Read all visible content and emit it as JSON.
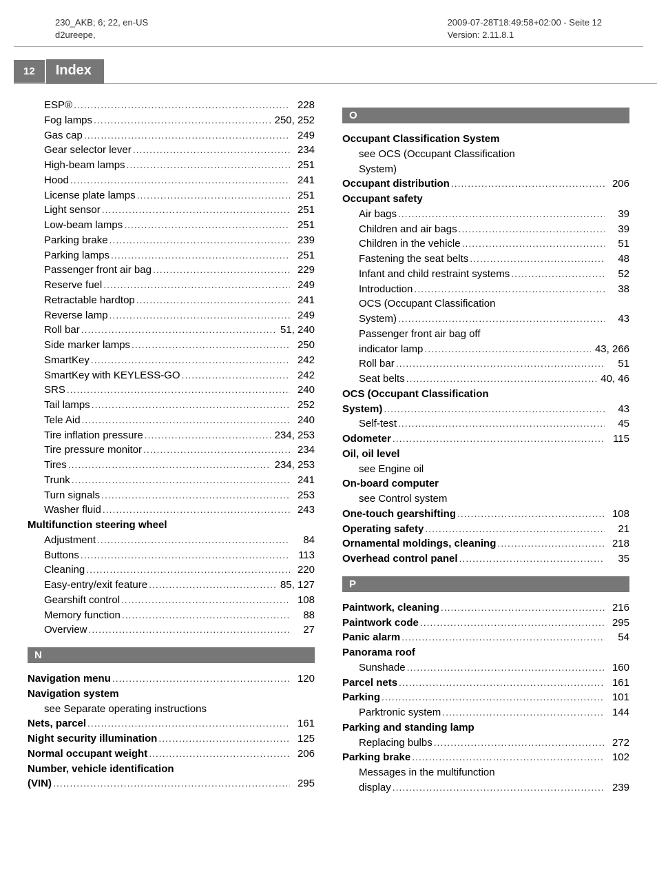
{
  "header": {
    "left_line1": "230_AKB; 6; 22, en-US",
    "left_line2": "d2ureepe,",
    "right_line1": "2009-07-28T18:49:58+02:00 - Seite 12",
    "right_line2": "Version: 2.11.8.1"
  },
  "pagebar": {
    "num": "12",
    "title": "Index"
  },
  "colors": {
    "bar": "#777777",
    "text": "#000000"
  },
  "left_col": [
    {
      "label": "ESP®",
      "page": "228",
      "indent": true
    },
    {
      "label": "Fog lamps",
      "page": "250, 252",
      "indent": true
    },
    {
      "label": "Gas cap",
      "page": "249",
      "indent": true
    },
    {
      "label": "Gear selector lever",
      "page": "234",
      "indent": true
    },
    {
      "label": "High-beam lamps",
      "page": "251",
      "indent": true
    },
    {
      "label": "Hood",
      "page": "241",
      "indent": true
    },
    {
      "label": "License plate lamps",
      "page": "251",
      "indent": true
    },
    {
      "label": "Light sensor",
      "page": "251",
      "indent": true
    },
    {
      "label": "Low-beam lamps",
      "page": "251",
      "indent": true
    },
    {
      "label": "Parking brake",
      "page": "239",
      "indent": true
    },
    {
      "label": "Parking lamps",
      "page": "251",
      "indent": true
    },
    {
      "label": "Passenger front air bag",
      "page": "229",
      "indent": true
    },
    {
      "label": "Reserve fuel",
      "page": "249",
      "indent": true
    },
    {
      "label": "Retractable hardtop",
      "page": "241",
      "indent": true
    },
    {
      "label": "Reverse lamp",
      "page": "249",
      "indent": true
    },
    {
      "label": "Roll bar",
      "page": "51, 240",
      "indent": true
    },
    {
      "label": "Side marker lamps",
      "page": "250",
      "indent": true
    },
    {
      "label": "SmartKey",
      "page": "242",
      "indent": true
    },
    {
      "label": "SmartKey with KEYLESS-GO",
      "page": "242",
      "indent": true
    },
    {
      "label": "SRS",
      "page": "240",
      "indent": true
    },
    {
      "label": "Tail lamps",
      "page": "252",
      "indent": true
    },
    {
      "label": "Tele Aid",
      "page": "240",
      "indent": true
    },
    {
      "label": "Tire inflation pressure",
      "page": "234, 253",
      "indent": true
    },
    {
      "label": "Tire pressure monitor",
      "page": "234",
      "indent": true
    },
    {
      "label": "Tires",
      "page": "234, 253",
      "indent": true
    },
    {
      "label": "Trunk",
      "page": "241",
      "indent": true
    },
    {
      "label": "Turn signals",
      "page": "253",
      "indent": true
    },
    {
      "label": "Washer fluid",
      "page": "243",
      "indent": true
    },
    {
      "label": "Multifunction steering wheel",
      "bold": true,
      "nopage": true
    },
    {
      "label": "Adjustment",
      "page": "84",
      "indent": true
    },
    {
      "label": "Buttons",
      "page": "113",
      "indent": true
    },
    {
      "label": "Cleaning",
      "page": "220",
      "indent": true
    },
    {
      "label": "Easy-entry/exit feature",
      "page": "85, 127",
      "indent": true
    },
    {
      "label": "Gearshift control",
      "page": "108",
      "indent": true
    },
    {
      "label": "Memory function",
      "page": "88",
      "indent": true
    },
    {
      "label": "Overview",
      "page": "27",
      "indent": true
    },
    {
      "section": "N"
    },
    {
      "label": "Navigation menu",
      "page": "120",
      "bold": true
    },
    {
      "label": "Navigation system",
      "bold": true,
      "nopage": true
    },
    {
      "label": "see Separate operating instructions",
      "indent": true,
      "nopage": true
    },
    {
      "label": "Nets, parcel",
      "page": "161",
      "bold": true
    },
    {
      "label": "Night security illumination",
      "page": "125",
      "bold": true
    },
    {
      "label": "Normal occupant weight",
      "page": "206",
      "bold": true
    },
    {
      "label": "Number, vehicle identification",
      "bold": true,
      "nopage": true
    },
    {
      "label": "(VIN)",
      "page": "295",
      "bold": true
    }
  ],
  "right_col": [
    {
      "section": "O"
    },
    {
      "label": "Occupant Classification System",
      "bold": true,
      "nopage": true
    },
    {
      "label": "see OCS (Occupant Classification",
      "indent": true,
      "nopage": true
    },
    {
      "label": "System)",
      "indent": true,
      "nopage": true
    },
    {
      "label": "Occupant distribution",
      "page": "206",
      "bold": true
    },
    {
      "label": "Occupant safety",
      "bold": true,
      "nopage": true
    },
    {
      "label": "Air bags",
      "page": "39",
      "indent": true
    },
    {
      "label": "Children and air bags",
      "page": "39",
      "indent": true
    },
    {
      "label": "Children in the vehicle",
      "page": "51",
      "indent": true
    },
    {
      "label": "Fastening the seat belts",
      "page": "48",
      "indent": true
    },
    {
      "label": "Infant and child restraint systems",
      "page": "52",
      "indent": true
    },
    {
      "label": "Introduction",
      "page": "38",
      "indent": true
    },
    {
      "label": "OCS (Occupant Classification",
      "indent": true,
      "nopage": true
    },
    {
      "label": "System)",
      "page": "43",
      "indent": true
    },
    {
      "label": "Passenger front air bag off",
      "indent": true,
      "nopage": true
    },
    {
      "label": "indicator lamp",
      "page": "43, 266",
      "indent": true
    },
    {
      "label": "Roll bar",
      "page": "51",
      "indent": true
    },
    {
      "label": "Seat belts",
      "page": "40, 46",
      "indent": true
    },
    {
      "label": "OCS (Occupant Classification",
      "bold": true,
      "nopage": true
    },
    {
      "label": "System)",
      "page": "43",
      "bold": true
    },
    {
      "label": "Self-test",
      "page": "45",
      "indent": true
    },
    {
      "label": "Odometer",
      "page": "115",
      "bold": true
    },
    {
      "label": "Oil, oil level",
      "bold": true,
      "nopage": true
    },
    {
      "label": "see Engine oil",
      "indent": true,
      "nopage": true
    },
    {
      "label": "On-board computer",
      "bold": true,
      "nopage": true
    },
    {
      "label": "see Control system",
      "indent": true,
      "nopage": true
    },
    {
      "label": "One-touch gearshifting",
      "page": "108",
      "bold": true
    },
    {
      "label": "Operating safety",
      "page": "21",
      "bold": true
    },
    {
      "label": "Ornamental moldings, cleaning",
      "page": "218",
      "bold": true
    },
    {
      "label": "Overhead control panel",
      "page": "35",
      "bold": true
    },
    {
      "section": "P"
    },
    {
      "label": "Paintwork, cleaning",
      "page": "216",
      "bold": true
    },
    {
      "label": "Paintwork code",
      "page": "295",
      "bold": true
    },
    {
      "label": "Panic alarm",
      "page": "54",
      "bold": true
    },
    {
      "label": "Panorama roof",
      "bold": true,
      "nopage": true
    },
    {
      "label": "Sunshade",
      "page": "160",
      "indent": true
    },
    {
      "label": "Parcel nets",
      "page": "161",
      "bold": true
    },
    {
      "label": "Parking",
      "page": "101",
      "bold": true
    },
    {
      "label": "Parktronic system",
      "page": "144",
      "indent": true
    },
    {
      "label": "Parking and standing lamp",
      "bold": true,
      "nopage": true
    },
    {
      "label": "Replacing bulbs",
      "page": "272",
      "indent": true
    },
    {
      "label": "Parking brake",
      "page": "102",
      "bold": true
    },
    {
      "label": "Messages in the multifunction",
      "indent": true,
      "nopage": true
    },
    {
      "label": "display",
      "page": "239",
      "indent": true
    }
  ]
}
